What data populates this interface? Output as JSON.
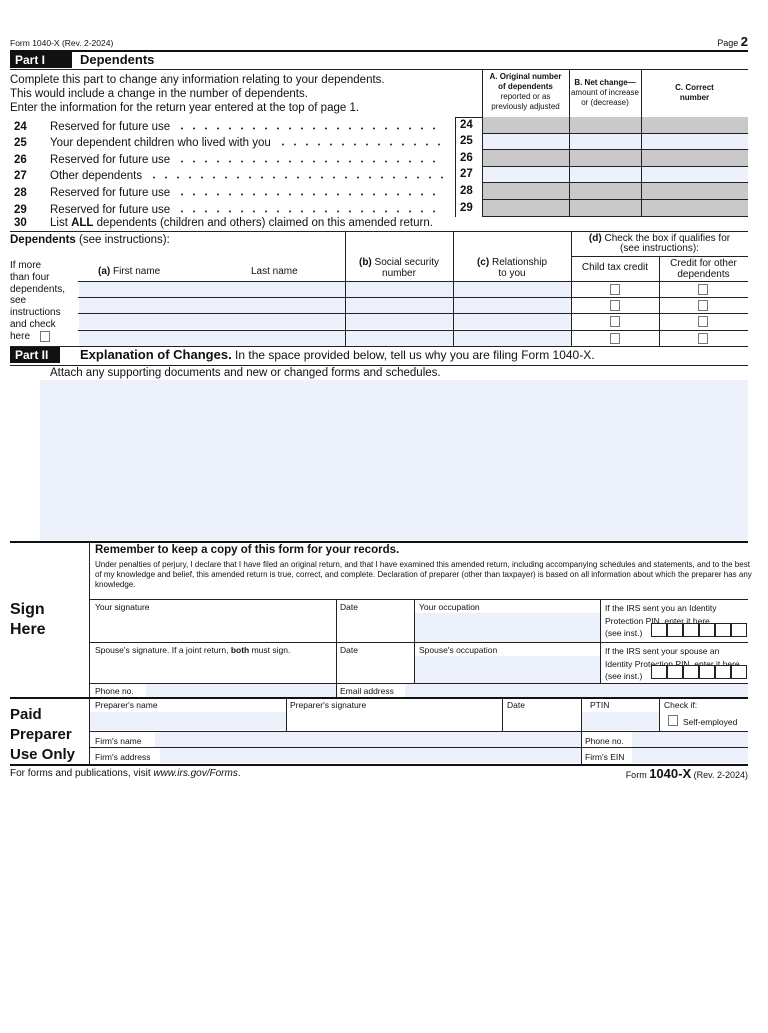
{
  "header": {
    "form_id": "Form 1040-X (Rev. 2-2024)",
    "page_label": "Page",
    "page_number": "2"
  },
  "part1": {
    "tag": "Part I",
    "title": "Dependents",
    "intro": [
      "Complete this part to change any information relating to your dependents.",
      "This would include a change in the number of dependents.",
      "Enter the information for the return year entered at the top of page 1."
    ],
    "col_a": [
      "A. Original number",
      "of dependents",
      "reported or as",
      "previously adjusted"
    ],
    "col_b": [
      "B. Net change—",
      "amount of increase",
      "or (decrease)"
    ],
    "col_c": [
      "C. Correct",
      "number"
    ],
    "lines": [
      {
        "num": "24",
        "label": "Reserved for future use",
        "shaded": true
      },
      {
        "num": "25",
        "label": "Your dependent children who lived with you",
        "shaded": false
      },
      {
        "num": "26",
        "label": "Reserved for future use",
        "shaded": true
      },
      {
        "num": "27",
        "label": "Other dependents",
        "shaded": false
      },
      {
        "num": "28",
        "label": "Reserved for future use",
        "shaded": true
      },
      {
        "num": "29",
        "label": "Reserved for future use",
        "shaded": true
      }
    ],
    "line30": {
      "num": "30",
      "pre": "List ",
      "bold": "ALL",
      "post": " dependents (children and others) claimed on this amended return."
    },
    "dependents": {
      "heading_bold": "Dependents",
      "heading": " (see instructions):",
      "more_than_four": [
        "If more",
        "than four",
        "dependents,",
        "see",
        "instructions",
        "and check",
        "here"
      ],
      "first_name_b": "(a)",
      "first_name": " First name",
      "last_name": "Last name",
      "ssn_b": "(b)",
      "ssn": [
        " Social security",
        "number"
      ],
      "rel_b": "(c)",
      "rel": [
        " Relationship",
        "to you"
      ],
      "check_b": "(d)",
      "check": [
        " Check the box if qualifies for",
        "(see instructions):"
      ],
      "child_tax_credit": "Child tax credit",
      "other_credit": [
        "Credit for other",
        "dependents"
      ]
    }
  },
  "part2": {
    "tag": "Part II",
    "title": "Explanation of Changes.",
    "desc": " In the space provided below, tell us why you are filing Form 1040-X.",
    "attach": "Attach any supporting documents and new or changed forms and schedules."
  },
  "sign": {
    "label": [
      "Sign",
      "Here"
    ],
    "remember": "Remember to keep a copy of this form for your records.",
    "perjury": "Under penalties of perjury, I declare that I have filed an original return, and that I have examined this amended return, including accompanying schedules and statements, and to the best of my knowledge and belief, this amended return is true, correct, and complete. Declaration of preparer (other than taxpayer) is based on all information about which the preparer has any knowledge.",
    "your_signature": "Your signature",
    "date": "Date",
    "your_occupation": "Your occupation",
    "ipin": [
      "If the IRS sent you an Identity",
      "Protection PIN, enter it here",
      "(see inst.)"
    ],
    "spouse_sig_pre": "Spouse's signature. If a joint return, ",
    "spouse_sig_bold": "both",
    "spouse_sig_post": " must sign.",
    "spouse_occupation": "Spouse's occupation",
    "spouse_ipin": [
      "If the IRS sent your spouse an",
      "Identity Protection PIN, enter it here",
      "(see inst.)"
    ],
    "phone": "Phone no.",
    "email": "Email address"
  },
  "preparer": {
    "label": [
      "Paid",
      "Preparer",
      "Use Only"
    ],
    "name": "Preparer's name",
    "signature": "Preparer's signature",
    "date": "Date",
    "ptin": "PTIN",
    "check_if": "Check if:",
    "self_employed": "Self-employed",
    "firm_name": "Firm's name",
    "phone": "Phone no.",
    "firm_address": "Firm's address",
    "firm_ein": "Firm's EIN"
  },
  "footer": {
    "left_pre": "For forms and publications, visit ",
    "left_url": "www.irs.gov/Forms",
    "left_post": ".",
    "form_word": "Form",
    "form_num": "1040-X",
    "rev": "(Rev. 2-2024)"
  }
}
